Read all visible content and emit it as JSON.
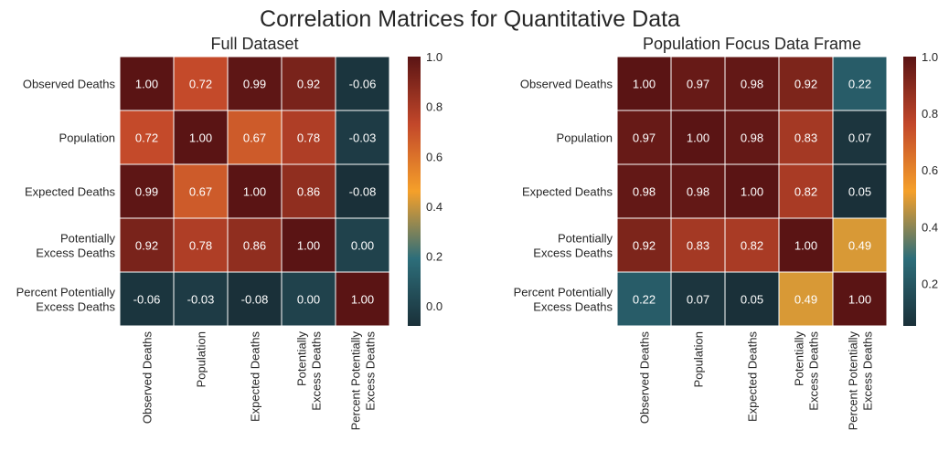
{
  "figure_title": "Correlation Matrices for Quantitative Data",
  "colormap": {
    "stops": [
      {
        "pos": 0.0,
        "color": "#1a3039"
      },
      {
        "pos": 0.25,
        "color": "#2d6e7a"
      },
      {
        "pos": 0.5,
        "color": "#f5a02a"
      },
      {
        "pos": 0.75,
        "color": "#c2472a"
      },
      {
        "pos": 1.0,
        "color": "#5a1414"
      }
    ],
    "grid_color": "#ffffff",
    "annotation_color": "#ffffff"
  },
  "chart_data": [
    {
      "type": "heatmap",
      "title": "Full Dataset",
      "row_labels": [
        [
          "Observed Deaths"
        ],
        [
          "Population"
        ],
        [
          "Expected Deaths"
        ],
        [
          "Potentially",
          "Excess Deaths"
        ],
        [
          "Percent Potentially",
          "Excess Deaths"
        ]
      ],
      "col_labels": [
        [
          "Observed Deaths"
        ],
        [
          "Population"
        ],
        [
          "Expected Deaths"
        ],
        [
          "Potentially",
          "Excess Deaths"
        ],
        [
          "Percent Potentially",
          "Excess Deaths"
        ]
      ],
      "values": [
        [
          1.0,
          0.72,
          0.99,
          0.92,
          -0.06
        ],
        [
          0.72,
          1.0,
          0.67,
          0.78,
          -0.03
        ],
        [
          0.99,
          0.67,
          1.0,
          0.86,
          -0.08
        ],
        [
          0.92,
          0.78,
          0.86,
          1.0,
          0.0
        ],
        [
          -0.06,
          -0.03,
          -0.08,
          0.0,
          1.0
        ]
      ],
      "vmin": -0.08,
      "vmax": 1.0,
      "colorbar_ticks": [
        0.0,
        0.2,
        0.4,
        0.6,
        0.8,
        1.0
      ],
      "colorbar_tick_labels": [
        "0.0",
        "0.2",
        "0.4",
        "0.6",
        "0.8",
        "1.0"
      ]
    },
    {
      "type": "heatmap",
      "title": "Population Focus Data Frame",
      "row_labels": [
        [
          "Observed Deaths"
        ],
        [
          "Population"
        ],
        [
          "Expected Deaths"
        ],
        [
          "Potentially",
          "Excess Deaths"
        ],
        [
          "Percent Potentially",
          "Excess Deaths"
        ]
      ],
      "col_labels": [
        [
          "Observed Deaths"
        ],
        [
          "Population"
        ],
        [
          "Expected Deaths"
        ],
        [
          "Potentially",
          "Excess Deaths"
        ],
        [
          "Percent Potentially",
          "Excess Deaths"
        ]
      ],
      "values": [
        [
          1.0,
          0.97,
          0.98,
          0.92,
          0.22
        ],
        [
          0.97,
          1.0,
          0.98,
          0.83,
          0.07
        ],
        [
          0.98,
          0.98,
          1.0,
          0.82,
          0.05
        ],
        [
          0.92,
          0.83,
          0.82,
          1.0,
          0.49
        ],
        [
          0.22,
          0.07,
          0.05,
          0.49,
          1.0
        ]
      ],
      "vmin": 0.05,
      "vmax": 1.0,
      "colorbar_ticks": [
        0.2,
        0.4,
        0.6,
        0.8,
        1.0
      ],
      "colorbar_tick_labels": [
        "0.2",
        "0.4",
        "0.6",
        "0.8",
        "1.0"
      ]
    }
  ]
}
